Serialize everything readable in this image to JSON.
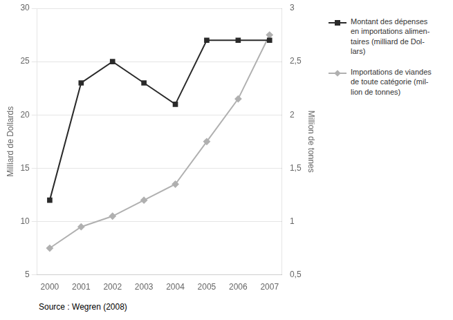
{
  "chart_data": {
    "type": "line",
    "x": [
      2000,
      2001,
      2002,
      2003,
      2004,
      2005,
      2006,
      2007
    ],
    "xlim": [
      1999.6,
      2007.4
    ],
    "xticks": [
      2000,
      2001,
      2002,
      2003,
      2004,
      2005,
      2006,
      2007
    ],
    "ylabel": "Milliard de Dollards",
    "y2label": "Million de tonnes",
    "ylim": [
      5,
      30
    ],
    "yticks": [
      5,
      10,
      15,
      20,
      25,
      30
    ],
    "y2lim": [
      0.5,
      3.0
    ],
    "y2ticks": [
      {
        "value": 0.5,
        "label": "0,5"
      },
      1,
      {
        "value": 1.5,
        "label": "1,5"
      },
      2,
      {
        "value": 2.5,
        "label": "2,5"
      },
      3
    ],
    "grid": true,
    "legend": "right",
    "annotations": [
      "Source : Wegren (2008)"
    ],
    "series": [
      {
        "name": "Montant des dépenses\nen importations alimen-\ntaires (milliard de Dol-\nlars)",
        "color": "#2a2a2a",
        "marker": "square",
        "axis": "y",
        "values": [
          12,
          23,
          25,
          23,
          21,
          27,
          27,
          27
        ]
      },
      {
        "name": "Importations de viandes\nde toute catégorie (mil-\nlion de tonnes)",
        "color": "#b0b0b0",
        "marker": "diamond",
        "axis": "y2",
        "values": [
          0.75,
          0.95,
          1.05,
          1.2,
          1.35,
          1.75,
          2.15,
          2.75
        ]
      }
    ]
  }
}
